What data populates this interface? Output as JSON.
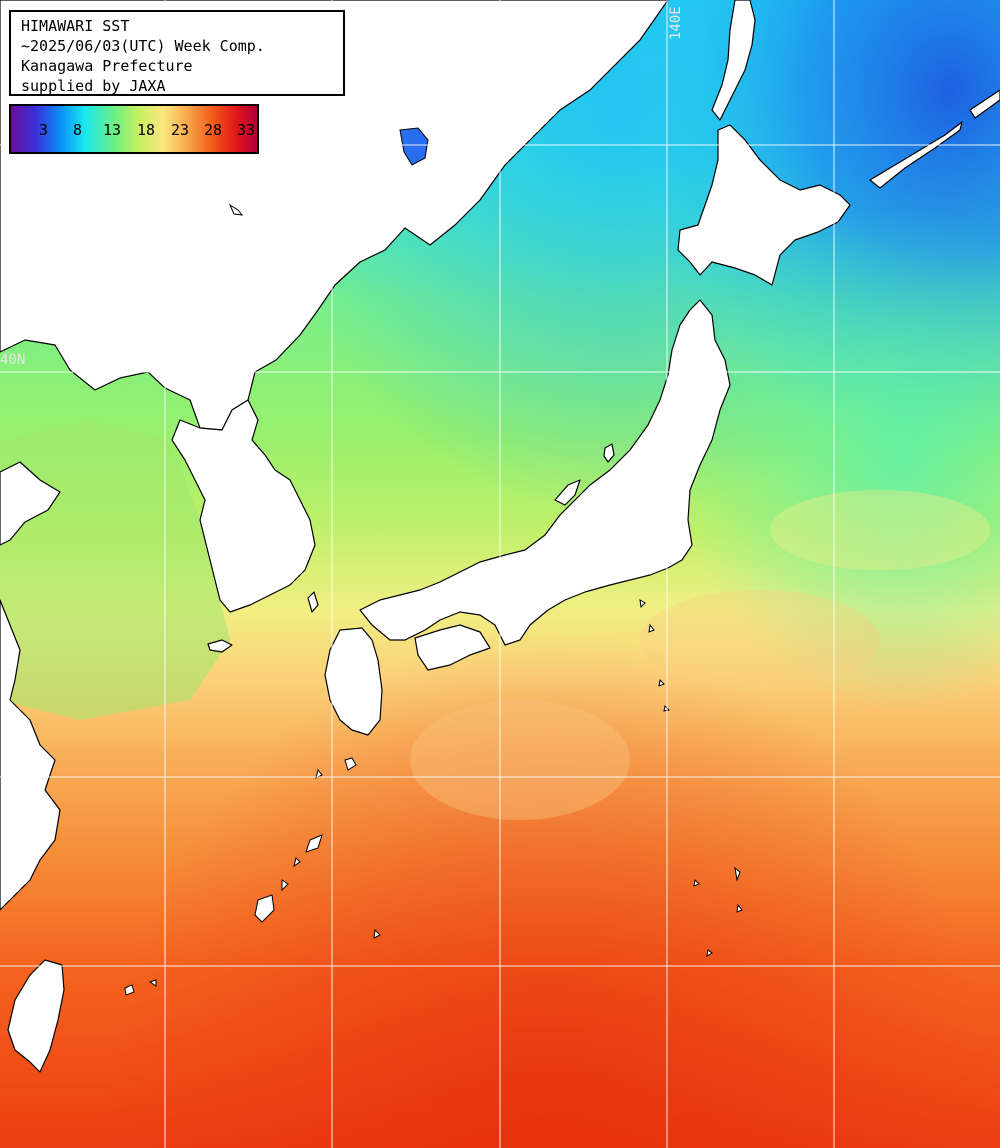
{
  "title": {
    "line1": "HIMAWARI SST",
    "line2": "~2025/06/03(UTC) Week Comp.",
    "line3": "Kanagawa Prefecture",
    "line4": "supplied by JAXA"
  },
  "legend": {
    "labels": [
      "3",
      "8",
      "13",
      "18",
      "23",
      "28",
      "33"
    ],
    "gradient_colors": [
      "#6a0e9a",
      "#3a2fd8",
      "#0a8ef5",
      "#18e8f0",
      "#6cf084",
      "#c8f060",
      "#fbe780",
      "#f9a64a",
      "#f05a18",
      "#e0141a",
      "#b0003a"
    ]
  },
  "grid_labels": {
    "lon_140": "140E",
    "lat_40": "40N"
  },
  "colors": {
    "land": "#ffffff",
    "coastline": "#000000",
    "gridline": "#ffffff"
  }
}
